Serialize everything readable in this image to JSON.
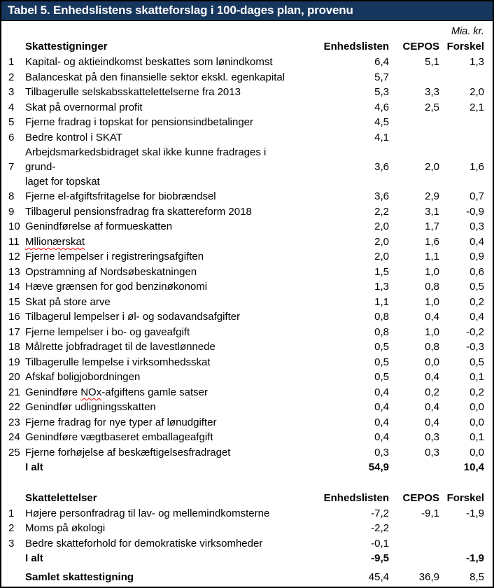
{
  "table": {
    "title": "Tabel 5. Enhedslistens skatteforslag i 100-dages plan, provenu",
    "unit": "Mia. kr.",
    "columns": [
      "Enhedslisten",
      "CEPOS",
      "Forskel"
    ],
    "sections": [
      {
        "heading": "Skattestigninger",
        "rows": [
          {
            "num": "1",
            "label": "Kapital- og aktieindkomst beskattes som lønindkomst",
            "values": [
              "6,4",
              "5,1",
              "1,3"
            ]
          },
          {
            "num": "2",
            "label": "Balanceskat på den finansielle sektor ekskl. egenkapital",
            "values": [
              "5,7",
              "",
              ""
            ]
          },
          {
            "num": "3",
            "label": "Tilbagerulle selskabsskattelettelserne fra 2013",
            "values": [
              "5,3",
              "3,3",
              "2,0"
            ]
          },
          {
            "num": "4",
            "label": "Skat på overnormal profit",
            "values": [
              "4,6",
              "2,5",
              "2,1"
            ]
          },
          {
            "num": "5",
            "label": "Fjerne fradrag i topskat for pensionsindbetalinger",
            "values": [
              "4,5",
              "",
              ""
            ]
          },
          {
            "num": "6",
            "label": "Bedre kontrol i SKAT",
            "values": [
              "4,1",
              "",
              ""
            ]
          },
          {
            "num": "7",
            "label": "Arbejdsmarkedsbidraget skal ikke kunne fradrages i grund-\nlaget for topskat",
            "values": [
              "3,6",
              "2,0",
              "1,6"
            ]
          },
          {
            "num": "8",
            "label": "Fjerne el-afgiftsfritagelse for biobrændsel",
            "values": [
              "3,6",
              "2,9",
              "0,7"
            ]
          },
          {
            "num": "9",
            "label": "Tilbagerul pensionsfradrag fra skattereform 2018",
            "values": [
              "2,2",
              "3,1",
              "-0,9"
            ]
          },
          {
            "num": "10",
            "label": "Genindførelse af formueskatten",
            "values": [
              "2,0",
              "1,7",
              "0,3"
            ]
          },
          {
            "num": "11",
            "label": "Mllionærskat",
            "squiggle": "Mllionærskat",
            "values": [
              "2,0",
              "1,6",
              "0,4"
            ]
          },
          {
            "num": "12",
            "label": "Fjerne lempelser i registreringsafgiften",
            "values": [
              "2,0",
              "1,1",
              "0,9"
            ]
          },
          {
            "num": "13",
            "label": "Opstramning af Nordsøbeskatningen",
            "values": [
              "1,5",
              "1,0",
              "0,6"
            ]
          },
          {
            "num": "14",
            "label": "Hæve grænsen for god benzinøkonomi",
            "values": [
              "1,3",
              "0,8",
              "0,5"
            ]
          },
          {
            "num": "15",
            "label": "Skat på store arve",
            "values": [
              "1,1",
              "1,0",
              "0,2"
            ]
          },
          {
            "num": "16",
            "label": "Tilbagerul lempelser i øl- og sodavandsafgifter",
            "values": [
              "0,8",
              "0,4",
              "0,4"
            ]
          },
          {
            "num": "17",
            "label": "Fjerne lempelser i bo- og gaveafgift",
            "values": [
              "0,8",
              "1,0",
              "-0,2"
            ]
          },
          {
            "num": "18",
            "label": "Målrette jobfradraget til de lavestlønnede",
            "values": [
              "0,5",
              "0,8",
              "-0,3"
            ]
          },
          {
            "num": "19",
            "label": "Tilbagerulle lempelse i virksomhedsskat",
            "values": [
              "0,5",
              "0,0",
              "0,5"
            ]
          },
          {
            "num": "20",
            "label": "Afskaf boligjobordningen",
            "values": [
              "0,5",
              "0,4",
              "0,1"
            ]
          },
          {
            "num": "21",
            "label": "Genindføre NOx-afgiftens gamle satser",
            "squiggle": "NOx",
            "values": [
              "0,4",
              "0,2",
              "0,2"
            ]
          },
          {
            "num": "22",
            "label": "Genindfør udligningsskatten",
            "values": [
              "0,4",
              "0,4",
              "0,0"
            ]
          },
          {
            "num": "23",
            "label": "Fjerne fradrag for nye typer af lønudgifter",
            "values": [
              "0,4",
              "0,4",
              "0,0"
            ]
          },
          {
            "num": "24",
            "label": "Genindføre vægtbaseret emballageafgift",
            "values": [
              "0,4",
              "0,3",
              "0,1"
            ]
          },
          {
            "num": "25",
            "label": "Fjerne forhøjelse af beskæftigelsesfradraget",
            "values": [
              "0,3",
              "0,3",
              "0,0"
            ]
          }
        ],
        "total": {
          "label": "I alt",
          "values": [
            "54,9",
            "",
            "10,4"
          ]
        }
      },
      {
        "heading": "Skattelettelser",
        "rows": [
          {
            "num": "1",
            "label": "Højere personfradrag til lav- og mellemindkomsterne",
            "values": [
              "-7,2",
              "-9,1",
              "-1,9"
            ]
          },
          {
            "num": "2",
            "label": "Moms på økologi",
            "values": [
              "-2,2",
              "",
              ""
            ]
          },
          {
            "num": "3",
            "label": "Bedre skatteforhold for demokratiske virksomheder",
            "values": [
              "-0,1",
              "",
              ""
            ]
          }
        ],
        "total": {
          "label": "I alt",
          "values": [
            "-9,5",
            "",
            "-1,9"
          ]
        }
      }
    ],
    "grand_total": {
      "label": "Samlet skattestigning",
      "values": [
        "45,4",
        "36,9",
        "8,5"
      ]
    },
    "colors": {
      "header_bg": "#17365D",
      "header_text": "#FFFFFF",
      "border": "#000000",
      "text": "#000000",
      "background": "#FFFFFF",
      "squiggle": "#FF0000"
    }
  }
}
